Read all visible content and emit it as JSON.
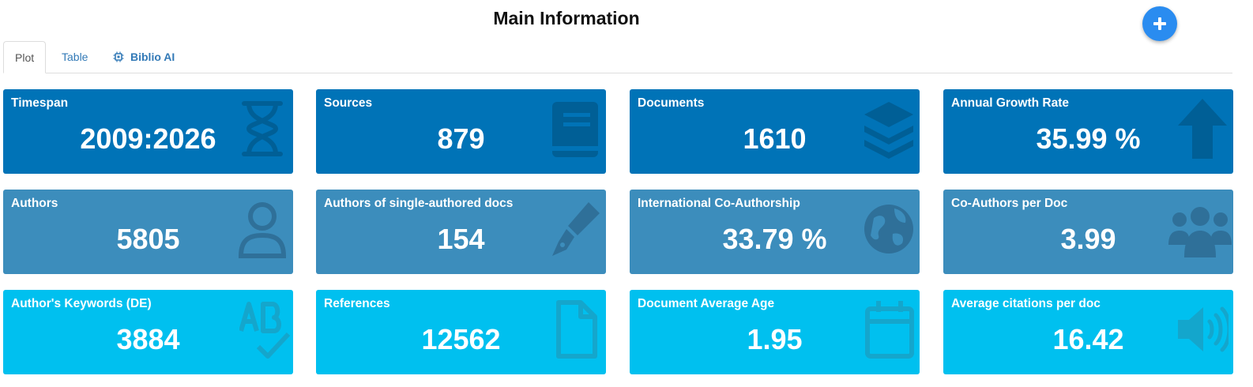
{
  "header": {
    "title": "Main Information"
  },
  "tabs": [
    {
      "label": "Plot",
      "active": true
    },
    {
      "label": "Table",
      "active": false
    },
    {
      "label": "Biblio AI",
      "active": false,
      "icon": "chip-icon"
    }
  ],
  "colors": {
    "row1": "#0073b7",
    "row2": "#3c8dbc",
    "row3": "#00c0ef",
    "add_button": "#2a8cf0"
  },
  "cards": [
    {
      "label": "Timespan",
      "value": "2009:2026",
      "icon": "hourglass-icon"
    },
    {
      "label": "Sources",
      "value": "879",
      "icon": "book-icon"
    },
    {
      "label": "Documents",
      "value": "1610",
      "icon": "layers-icon"
    },
    {
      "label": "Annual Growth Rate",
      "value": "35.99 %",
      "icon": "arrow-up-icon"
    },
    {
      "label": "Authors",
      "value": "5805",
      "icon": "user-icon"
    },
    {
      "label": "Authors of single-authored docs",
      "value": "154",
      "icon": "pen-nib-icon"
    },
    {
      "label": "International Co-Authorship",
      "value": "33.79 %",
      "icon": "globe-icon"
    },
    {
      "label": "Co-Authors per Doc",
      "value": "3.99",
      "icon": "users-icon"
    },
    {
      "label": "Author's Keywords (DE)",
      "value": "3884",
      "icon": "spell-check-icon"
    },
    {
      "label": "References",
      "value": "12562",
      "icon": "file-icon"
    },
    {
      "label": "Document Average Age",
      "value": "1.95",
      "icon": "calendar-icon"
    },
    {
      "label": "Average citations per doc",
      "value": "16.42",
      "icon": "volume-icon"
    }
  ]
}
